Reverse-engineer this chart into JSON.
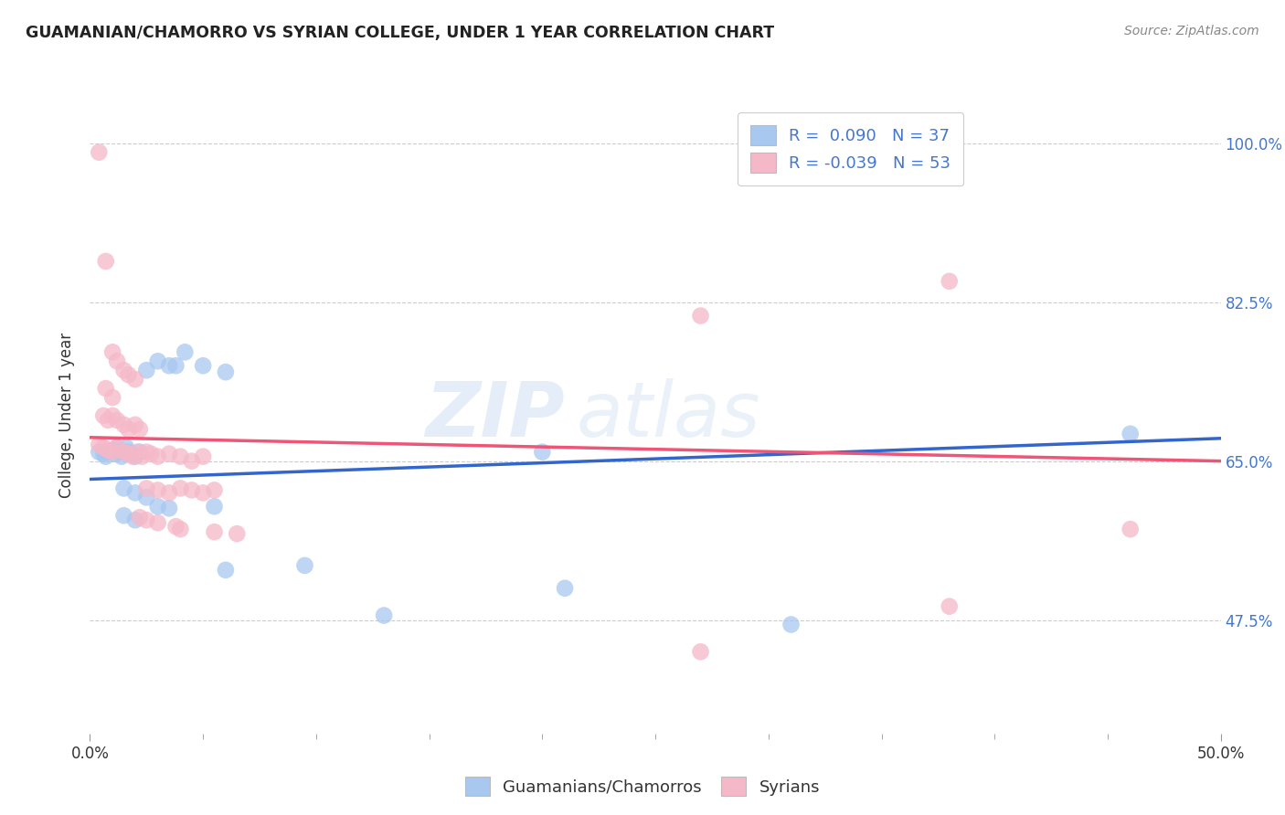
{
  "title": "GUAMANIAN/CHAMORRO VS SYRIAN COLLEGE, UNDER 1 YEAR CORRELATION CHART",
  "source": "Source: ZipAtlas.com",
  "ylabel": "College, Under 1 year",
  "xlim": [
    0.0,
    0.5
  ],
  "ylim": [
    0.35,
    1.05
  ],
  "yticks": [
    0.475,
    0.65,
    0.825,
    1.0
  ],
  "ytick_labels": [
    "47.5%",
    "65.0%",
    "82.5%",
    "100.0%"
  ],
  "xticks": [
    0.0,
    0.5
  ],
  "xtick_labels": [
    "0.0%",
    "50.0%"
  ],
  "legend_labels": [
    "Guamanians/Chamorros",
    "Syrians"
  ],
  "R_blue": 0.09,
  "N_blue": 37,
  "R_pink": -0.039,
  "N_pink": 53,
  "blue_color": "#A8C8F0",
  "pink_color": "#F5B8C8",
  "blue_line_color": "#3366CC",
  "pink_line_color": "#EE5577",
  "blue_points": [
    [
      0.004,
      0.66
    ],
    [
      0.006,
      0.658
    ],
    [
      0.007,
      0.655
    ],
    [
      0.008,
      0.66
    ],
    [
      0.01,
      0.662
    ],
    [
      0.011,
      0.658
    ],
    [
      0.012,
      0.665
    ],
    [
      0.013,
      0.66
    ],
    [
      0.014,
      0.655
    ],
    [
      0.015,
      0.66
    ],
    [
      0.016,
      0.665
    ],
    [
      0.017,
      0.66
    ],
    [
      0.018,
      0.658
    ],
    [
      0.02,
      0.655
    ],
    [
      0.022,
      0.66
    ],
    [
      0.025,
      0.75
    ],
    [
      0.03,
      0.76
    ],
    [
      0.035,
      0.755
    ],
    [
      0.038,
      0.755
    ],
    [
      0.042,
      0.77
    ],
    [
      0.05,
      0.755
    ],
    [
      0.06,
      0.748
    ],
    [
      0.015,
      0.62
    ],
    [
      0.02,
      0.615
    ],
    [
      0.025,
      0.61
    ],
    [
      0.03,
      0.6
    ],
    [
      0.035,
      0.598
    ],
    [
      0.055,
      0.6
    ],
    [
      0.015,
      0.59
    ],
    [
      0.02,
      0.585
    ],
    [
      0.06,
      0.53
    ],
    [
      0.095,
      0.535
    ],
    [
      0.13,
      0.48
    ],
    [
      0.21,
      0.51
    ],
    [
      0.31,
      0.47
    ],
    [
      0.46,
      0.68
    ],
    [
      0.2,
      0.66
    ]
  ],
  "pink_points": [
    [
      0.004,
      0.99
    ],
    [
      0.007,
      0.87
    ],
    [
      0.01,
      0.77
    ],
    [
      0.012,
      0.76
    ],
    [
      0.015,
      0.75
    ],
    [
      0.017,
      0.745
    ],
    [
      0.02,
      0.74
    ],
    [
      0.007,
      0.73
    ],
    [
      0.01,
      0.72
    ],
    [
      0.006,
      0.7
    ],
    [
      0.008,
      0.695
    ],
    [
      0.01,
      0.7
    ],
    [
      0.012,
      0.695
    ],
    [
      0.015,
      0.69
    ],
    [
      0.017,
      0.685
    ],
    [
      0.02,
      0.69
    ],
    [
      0.022,
      0.685
    ],
    [
      0.004,
      0.668
    ],
    [
      0.006,
      0.665
    ],
    [
      0.008,
      0.662
    ],
    [
      0.01,
      0.66
    ],
    [
      0.012,
      0.665
    ],
    [
      0.015,
      0.66
    ],
    [
      0.017,
      0.658
    ],
    [
      0.019,
      0.655
    ],
    [
      0.021,
      0.66
    ],
    [
      0.023,
      0.655
    ],
    [
      0.025,
      0.66
    ],
    [
      0.027,
      0.658
    ],
    [
      0.03,
      0.655
    ],
    [
      0.035,
      0.658
    ],
    [
      0.04,
      0.655
    ],
    [
      0.045,
      0.65
    ],
    [
      0.05,
      0.655
    ],
    [
      0.025,
      0.62
    ],
    [
      0.03,
      0.618
    ],
    [
      0.035,
      0.615
    ],
    [
      0.04,
      0.62
    ],
    [
      0.045,
      0.618
    ],
    [
      0.05,
      0.615
    ],
    [
      0.055,
      0.618
    ],
    [
      0.022,
      0.588
    ],
    [
      0.025,
      0.585
    ],
    [
      0.03,
      0.582
    ],
    [
      0.038,
      0.578
    ],
    [
      0.04,
      0.575
    ],
    [
      0.055,
      0.572
    ],
    [
      0.065,
      0.57
    ],
    [
      0.38,
      0.848
    ],
    [
      0.27,
      0.81
    ],
    [
      0.46,
      0.575
    ],
    [
      0.38,
      0.49
    ],
    [
      0.27,
      0.44
    ]
  ],
  "background_color": "#FFFFFF",
  "watermark_line1": "ZIP",
  "watermark_line2": "atlas",
  "grid_color": "#CCCCCC"
}
